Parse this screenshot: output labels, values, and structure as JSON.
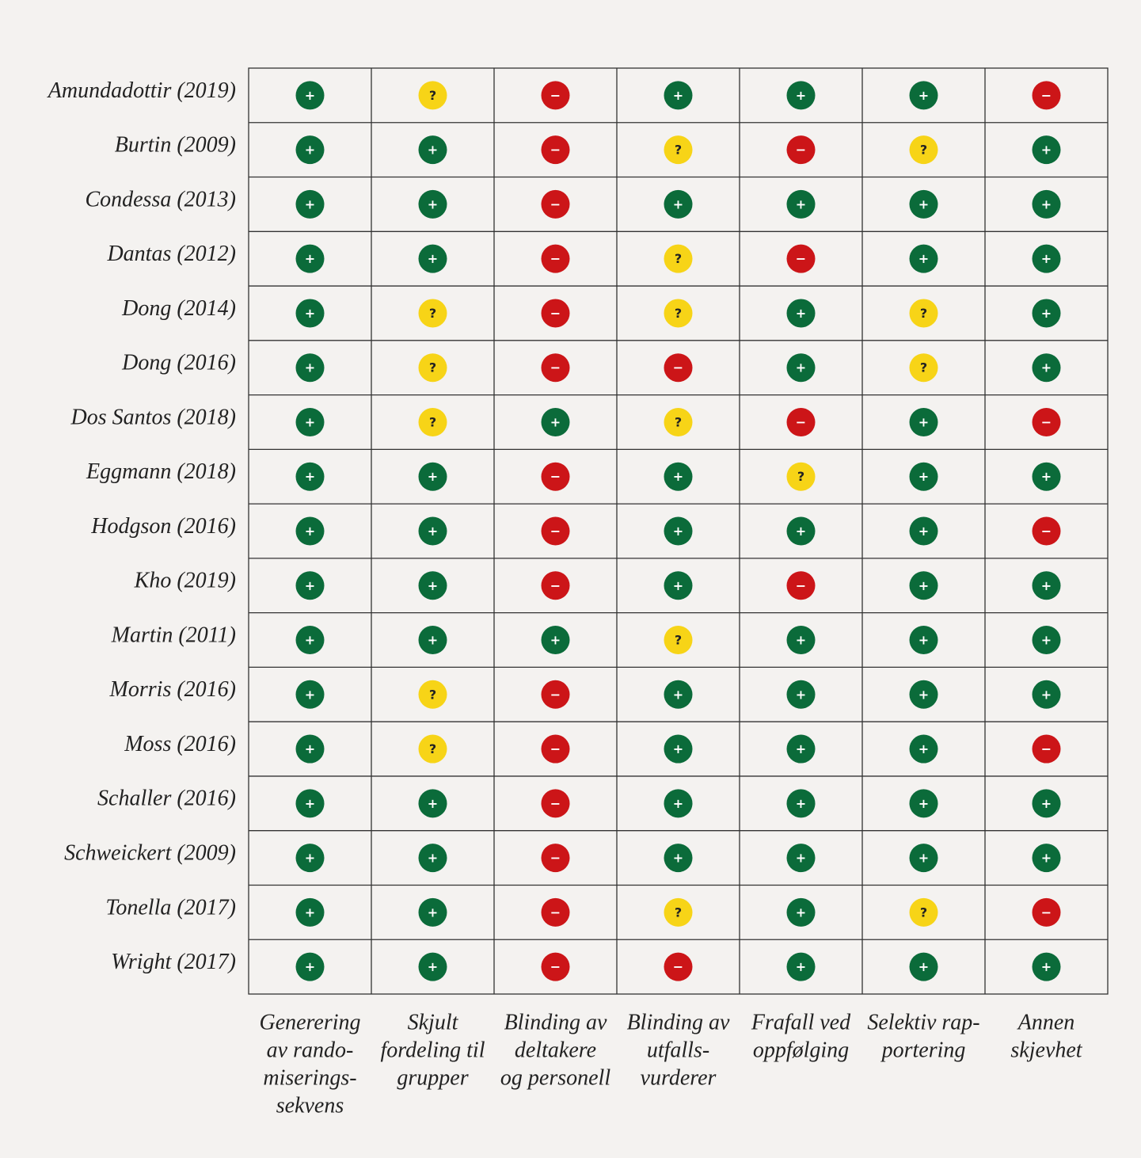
{
  "table": {
    "columns": [
      [
        "Generering",
        "av rando-",
        "miserings-",
        "sekvens"
      ],
      [
        "Skjult",
        "fordeling til",
        "grupper"
      ],
      [
        "Blinding av",
        "deltakere",
        "og personell"
      ],
      [
        "Blinding av",
        "utfalls-",
        "vurderer"
      ],
      [
        "Frafall ved",
        "oppfølging"
      ],
      [
        "Selektiv rap-",
        "portering"
      ],
      [
        "Annen",
        "skjevhet"
      ]
    ],
    "symbol_colors": {
      "+": "#0b6b3a",
      "?": "#f7d417",
      "−": "#cc1518"
    },
    "rows": [
      {
        "study": "Amundadottir (2019)",
        "cells": [
          "+",
          "?",
          "−",
          "+",
          "+",
          "+",
          "−"
        ]
      },
      {
        "study": "Burtin (2009)",
        "cells": [
          "+",
          "+",
          "−",
          "?",
          "−",
          "?",
          "+"
        ]
      },
      {
        "study": "Condessa (2013)",
        "cells": [
          "+",
          "+",
          "−",
          "+",
          "+",
          "+",
          "+"
        ]
      },
      {
        "study": "Dantas (2012)",
        "cells": [
          "+",
          "+",
          "−",
          "?",
          "−",
          "+",
          "+"
        ]
      },
      {
        "study": "Dong (2014)",
        "cells": [
          "+",
          "?",
          "−",
          "?",
          "+",
          "?",
          "+"
        ]
      },
      {
        "study": "Dong (2016)",
        "cells": [
          "+",
          "?",
          "−",
          "−",
          "+",
          "?",
          "+"
        ]
      },
      {
        "study": "Dos Santos (2018)",
        "cells": [
          "+",
          "?",
          "+",
          "?",
          "−",
          "+",
          "−"
        ]
      },
      {
        "study": "Eggmann (2018)",
        "cells": [
          "+",
          "+",
          "−",
          "+",
          "?",
          "+",
          "+"
        ]
      },
      {
        "study": "Hodgson (2016)",
        "cells": [
          "+",
          "+",
          "−",
          "+",
          "+",
          "+",
          "−"
        ]
      },
      {
        "study": "Kho (2019)",
        "cells": [
          "+",
          "+",
          "−",
          "+",
          "−",
          "+",
          "+"
        ]
      },
      {
        "study": "Martin (2011)",
        "cells": [
          "+",
          "+",
          "+",
          "?",
          "+",
          "+",
          "+"
        ]
      },
      {
        "study": "Morris (2016)",
        "cells": [
          "+",
          "?",
          "−",
          "+",
          "+",
          "+",
          "+"
        ]
      },
      {
        "study": "Moss (2016)",
        "cells": [
          "+",
          "?",
          "−",
          "+",
          "+",
          "+",
          "−"
        ]
      },
      {
        "study": "Schaller (2016)",
        "cells": [
          "+",
          "+",
          "−",
          "+",
          "+",
          "+",
          "+"
        ]
      },
      {
        "study": "Schweickert (2009)",
        "cells": [
          "+",
          "+",
          "−",
          "+",
          "+",
          "+",
          "+"
        ]
      },
      {
        "study": "Tonella (2017)",
        "cells": [
          "+",
          "+",
          "−",
          "?",
          "+",
          "?",
          "−"
        ]
      },
      {
        "study": "Wright (2017)",
        "cells": [
          "+",
          "+",
          "−",
          "−",
          "+",
          "+",
          "+"
        ]
      }
    ]
  }
}
